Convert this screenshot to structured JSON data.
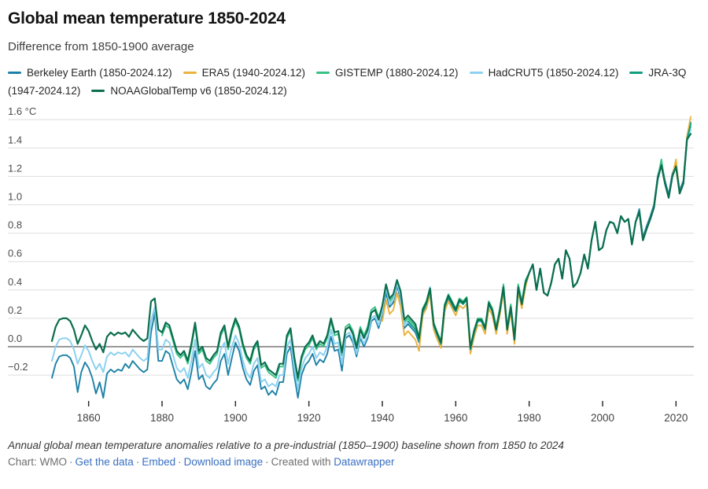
{
  "header": {
    "title": "Global mean temperature 1850-2024",
    "subtitle": "Difference from 1850-1900 average"
  },
  "chart_data": {
    "type": "line",
    "title": "Global mean temperature 1850-2024",
    "subtitle": "Difference from 1850-1900 average",
    "unit": "°C",
    "xlim": [
      1850,
      2024
    ],
    "ylim": [
      -0.44,
      1.73
    ],
    "grid": "horizontal",
    "legend_position": "top",
    "x_ticks": [
      1860,
      1880,
      1900,
      1920,
      1940,
      1960,
      1980,
      2000,
      2020
    ],
    "y_ticks": [
      {
        "v": 1.6,
        "label": "1.6 °C"
      },
      {
        "v": 1.4,
        "label": "1.4"
      },
      {
        "v": 1.2,
        "label": "1.2"
      },
      {
        "v": 1.0,
        "label": "1.0"
      },
      {
        "v": 0.8,
        "label": "0.8"
      },
      {
        "v": 0.6,
        "label": "0.6"
      },
      {
        "v": 0.4,
        "label": "0.4"
      },
      {
        "v": 0.2,
        "label": "0.2"
      },
      {
        "v": 0.0,
        "label": "0.0"
      },
      {
        "v": -0.2,
        "label": "−0.2"
      }
    ],
    "series": [
      {
        "name": "Berkeley Earth",
        "range": "(1850-2024.12)",
        "color": "#1d81a7",
        "stroke_width": 1.9,
        "start_year": 1850,
        "values": [
          -0.22,
          -0.12,
          -0.07,
          -0.06,
          -0.06,
          -0.08,
          -0.14,
          -0.32,
          -0.18,
          -0.11,
          -0.15,
          -0.22,
          -0.33,
          -0.25,
          -0.36,
          -0.19,
          -0.16,
          -0.18,
          -0.16,
          -0.17,
          -0.12,
          -0.15,
          -0.1,
          -0.13,
          -0.16,
          -0.18,
          -0.16,
          0.1,
          0.24,
          -0.1,
          -0.1,
          -0.03,
          -0.05,
          -0.14,
          -0.23,
          -0.26,
          -0.23,
          -0.3,
          -0.18,
          -0.03,
          -0.23,
          -0.2,
          -0.28,
          -0.3,
          -0.26,
          -0.23,
          -0.1,
          -0.05,
          -0.2,
          -0.08,
          0.03,
          -0.03,
          -0.15,
          -0.23,
          -0.27,
          -0.17,
          -0.13,
          -0.3,
          -0.28,
          -0.34,
          -0.31,
          -0.34,
          -0.25,
          -0.25,
          -0.05,
          0.0,
          -0.2,
          -0.36,
          -0.2,
          -0.13,
          -0.1,
          -0.05,
          -0.13,
          -0.09,
          -0.11,
          -0.05,
          0.07,
          -0.03,
          -0.02,
          -0.17,
          0.06,
          0.08,
          0.03,
          -0.07,
          0.06,
          0.0,
          0.06,
          0.18,
          0.2,
          0.13,
          0.23,
          0.38,
          0.28,
          0.31,
          0.43,
          0.33,
          0.13,
          0.16,
          0.13,
          0.1,
          0.03,
          0.23,
          0.28,
          0.38,
          0.13,
          0.06,
          0.0,
          0.26,
          0.33,
          0.28,
          0.25,
          0.32,
          0.3,
          0.33,
          -0.02,
          0.1,
          0.18,
          0.18,
          0.12,
          0.3,
          0.25,
          0.12,
          0.25,
          0.42,
          0.12,
          0.28,
          0.05,
          0.42,
          0.3,
          0.45,
          0.52,
          0.58,
          0.4,
          0.55,
          0.38,
          0.36,
          0.45,
          0.58,
          0.62,
          0.48,
          0.68,
          0.62,
          0.42,
          0.45,
          0.52,
          0.65,
          0.55,
          0.75,
          0.88,
          0.68,
          0.7,
          0.82,
          0.88,
          0.87,
          0.8,
          0.92,
          0.88,
          0.9,
          0.72,
          0.88,
          0.97,
          0.77,
          0.85,
          0.92,
          1.0,
          1.2,
          1.3,
          1.17,
          1.07,
          1.22,
          1.29,
          1.1,
          1.17,
          1.48,
          1.58
        ]
      },
      {
        "name": "ERA5",
        "range": "(1940-2024.12)",
        "color": "#ecb23d",
        "stroke_width": 1.9,
        "start_year": 1940,
        "values": [
          0.18,
          0.33,
          0.23,
          0.26,
          0.38,
          0.28,
          0.08,
          0.11,
          0.08,
          0.05,
          -0.03,
          0.22,
          0.27,
          0.37,
          0.12,
          0.05,
          -0.01,
          0.25,
          0.32,
          0.27,
          0.22,
          0.29,
          0.27,
          0.3,
          -0.05,
          0.07,
          0.15,
          0.15,
          0.09,
          0.27,
          0.22,
          0.09,
          0.22,
          0.39,
          0.09,
          0.25,
          0.02,
          0.39,
          0.27,
          0.42,
          0.52,
          0.58,
          0.4,
          0.55,
          0.38,
          0.36,
          0.45,
          0.58,
          0.62,
          0.48,
          0.68,
          0.62,
          0.42,
          0.45,
          0.52,
          0.65,
          0.55,
          0.75,
          0.88,
          0.68,
          0.7,
          0.82,
          0.88,
          0.87,
          0.8,
          0.92,
          0.88,
          0.9,
          0.72,
          0.88,
          0.95,
          0.75,
          0.83,
          0.9,
          0.98,
          1.18,
          1.28,
          1.15,
          1.05,
          1.2,
          1.32,
          1.08,
          1.15,
          1.48,
          1.62
        ]
      },
      {
        "name": "GISTEMP",
        "range": "(1880-2024.12)",
        "color": "#35c184",
        "stroke_width": 1.9,
        "start_year": 1880,
        "values": [
          0.08,
          0.15,
          0.13,
          0.04,
          -0.05,
          -0.08,
          -0.05,
          -0.12,
          0.0,
          0.15,
          -0.05,
          -0.02,
          -0.1,
          -0.12,
          -0.08,
          -0.05,
          0.08,
          0.13,
          -0.02,
          0.1,
          0.18,
          0.12,
          0.0,
          -0.08,
          -0.12,
          -0.02,
          0.02,
          -0.15,
          -0.13,
          -0.18,
          -0.2,
          -0.22,
          -0.14,
          -0.14,
          0.06,
          0.11,
          -0.09,
          -0.24,
          -0.09,
          -0.02,
          0.01,
          0.06,
          -0.02,
          0.02,
          0.0,
          0.06,
          0.18,
          0.08,
          0.09,
          -0.06,
          0.14,
          0.16,
          0.11,
          0.01,
          0.14,
          0.08,
          0.14,
          0.26,
          0.28,
          0.21,
          0.27,
          0.42,
          0.32,
          0.35,
          0.47,
          0.37,
          0.17,
          0.2,
          0.17,
          0.14,
          0.07,
          0.27,
          0.32,
          0.42,
          0.17,
          0.1,
          0.04,
          0.3,
          0.37,
          0.32,
          0.27,
          0.34,
          0.32,
          0.35,
          0.0,
          0.12,
          0.2,
          0.2,
          0.14,
          0.32,
          0.27,
          0.14,
          0.27,
          0.44,
          0.14,
          0.3,
          0.07,
          0.44,
          0.32,
          0.47,
          0.52,
          0.58,
          0.4,
          0.55,
          0.38,
          0.36,
          0.45,
          0.58,
          0.62,
          0.48,
          0.68,
          0.62,
          0.42,
          0.45,
          0.52,
          0.65,
          0.55,
          0.75,
          0.88,
          0.68,
          0.7,
          0.82,
          0.88,
          0.87,
          0.8,
          0.92,
          0.88,
          0.9,
          0.72,
          0.88,
          0.95,
          0.75,
          0.83,
          0.9,
          0.98,
          1.18,
          1.32,
          1.15,
          1.05,
          1.2,
          1.27,
          1.08,
          1.15,
          1.46,
          1.55
        ]
      },
      {
        "name": "HadCRUT5",
        "range": "(1850-2024.12)",
        "color": "#8dd1f0",
        "stroke_width": 2.0,
        "start_year": 1850,
        "values": [
          -0.1,
          0.0,
          0.05,
          0.06,
          0.06,
          0.04,
          -0.02,
          -0.12,
          -0.06,
          0.01,
          -0.03,
          -0.1,
          -0.16,
          -0.12,
          -0.18,
          -0.07,
          -0.04,
          -0.06,
          -0.04,
          -0.05,
          -0.04,
          -0.07,
          -0.02,
          -0.05,
          -0.08,
          -0.1,
          -0.08,
          0.18,
          0.28,
          -0.02,
          -0.02,
          0.05,
          0.03,
          -0.06,
          -0.15,
          -0.18,
          -0.15,
          -0.22,
          -0.1,
          0.05,
          -0.15,
          -0.12,
          -0.2,
          -0.22,
          -0.18,
          -0.15,
          -0.02,
          0.03,
          -0.12,
          0.0,
          0.08,
          0.02,
          -0.1,
          -0.18,
          -0.22,
          -0.12,
          -0.08,
          -0.25,
          -0.23,
          -0.28,
          -0.26,
          -0.28,
          -0.2,
          -0.2,
          0.0,
          0.05,
          -0.15,
          -0.3,
          -0.15,
          -0.08,
          -0.05,
          0.0,
          -0.08,
          -0.04,
          -0.06,
          0.0,
          0.12,
          0.02,
          0.03,
          -0.12,
          0.08,
          0.1,
          0.05,
          -0.05,
          0.08,
          0.02,
          0.08,
          0.2,
          0.22,
          0.15,
          0.25,
          0.42,
          0.3,
          0.33,
          0.45,
          0.35,
          0.15,
          0.18,
          0.15,
          0.12,
          0.05,
          0.25,
          0.3,
          0.42,
          0.15,
          0.08,
          0.02,
          0.28,
          0.35,
          0.3,
          0.25,
          0.32,
          0.3,
          0.33,
          -0.02,
          0.1,
          0.18,
          0.18,
          0.12,
          0.3,
          0.25,
          0.12,
          0.25,
          0.42,
          0.12,
          0.28,
          0.05,
          0.42,
          0.3,
          0.45,
          0.52,
          0.58,
          0.4,
          0.55,
          0.38,
          0.36,
          0.45,
          0.58,
          0.62,
          0.48,
          0.68,
          0.62,
          0.42,
          0.45,
          0.52,
          0.65,
          0.55,
          0.75,
          0.88,
          0.68,
          0.7,
          0.82,
          0.88,
          0.87,
          0.8,
          0.92,
          0.88,
          0.9,
          0.72,
          0.88,
          0.95,
          0.75,
          0.83,
          0.9,
          0.98,
          1.18,
          1.28,
          1.15,
          1.05,
          1.2,
          1.27,
          1.08,
          1.15,
          1.46,
          1.53
        ]
      },
      {
        "name": "JRA-3Q",
        "range": "(1947-2024.12)",
        "color": "#0f9e7f",
        "stroke_width": 1.9,
        "start_year": 1947,
        "values": [
          0.18,
          0.15,
          0.12,
          0.05,
          0.25,
          0.3,
          0.4,
          0.15,
          0.08,
          0.02,
          0.28,
          0.35,
          0.3,
          0.25,
          0.32,
          0.3,
          0.33,
          -0.02,
          0.1,
          0.18,
          0.18,
          0.12,
          0.3,
          0.25,
          0.12,
          0.25,
          0.42,
          0.12,
          0.28,
          0.05,
          0.42,
          0.3,
          0.45,
          0.52,
          0.58,
          0.4,
          0.55,
          0.38,
          0.36,
          0.45,
          0.58,
          0.62,
          0.48,
          0.68,
          0.62,
          0.42,
          0.45,
          0.52,
          0.65,
          0.55,
          0.75,
          0.88,
          0.68,
          0.7,
          0.82,
          0.88,
          0.87,
          0.8,
          0.92,
          0.88,
          0.9,
          0.72,
          0.88,
          0.95,
          0.75,
          0.83,
          0.9,
          0.98,
          1.18,
          1.28,
          1.15,
          1.05,
          1.2,
          1.27,
          1.08,
          1.15,
          1.46,
          1.57
        ]
      },
      {
        "name": "NOAAGlobalTemp v6",
        "range": "(1850-2024.12)",
        "color": "#0c6e4f",
        "stroke_width": 2.2,
        "start_year": 1850,
        "values": [
          0.04,
          0.14,
          0.19,
          0.2,
          0.2,
          0.18,
          0.12,
          0.02,
          0.08,
          0.15,
          0.11,
          0.04,
          -0.02,
          0.02,
          -0.04,
          0.07,
          0.1,
          0.08,
          0.1,
          0.09,
          0.1,
          0.07,
          0.12,
          0.09,
          0.06,
          0.04,
          0.06,
          0.32,
          0.34,
          0.12,
          0.1,
          0.17,
          0.15,
          0.06,
          -0.03,
          -0.06,
          -0.03,
          -0.1,
          0.02,
          0.17,
          -0.03,
          0.0,
          -0.08,
          -0.1,
          -0.06,
          -0.03,
          0.1,
          0.15,
          0.0,
          0.12,
          0.2,
          0.14,
          0.02,
          -0.06,
          -0.1,
          0.0,
          0.04,
          -0.13,
          -0.11,
          -0.16,
          -0.18,
          -0.2,
          -0.12,
          -0.12,
          0.08,
          0.13,
          -0.07,
          -0.22,
          -0.07,
          0.0,
          0.03,
          0.08,
          0.0,
          0.04,
          0.02,
          0.08,
          0.2,
          0.1,
          0.11,
          -0.04,
          0.12,
          0.14,
          0.09,
          -0.01,
          0.12,
          0.06,
          0.12,
          0.24,
          0.26,
          0.19,
          0.29,
          0.44,
          0.34,
          0.37,
          0.47,
          0.39,
          0.19,
          0.22,
          0.19,
          0.16,
          0.06,
          0.26,
          0.31,
          0.41,
          0.16,
          0.09,
          0.03,
          0.29,
          0.36,
          0.31,
          0.26,
          0.33,
          0.31,
          0.34,
          -0.01,
          0.11,
          0.19,
          0.19,
          0.13,
          0.31,
          0.25,
          0.12,
          0.25,
          0.42,
          0.12,
          0.28,
          0.05,
          0.42,
          0.3,
          0.45,
          0.52,
          0.58,
          0.4,
          0.55,
          0.38,
          0.36,
          0.45,
          0.58,
          0.62,
          0.48,
          0.68,
          0.62,
          0.42,
          0.45,
          0.52,
          0.65,
          0.55,
          0.75,
          0.88,
          0.68,
          0.7,
          0.82,
          0.88,
          0.87,
          0.8,
          0.92,
          0.88,
          0.9,
          0.72,
          0.88,
          0.95,
          0.75,
          0.83,
          0.9,
          0.98,
          1.18,
          1.28,
          1.15,
          1.05,
          1.2,
          1.27,
          1.08,
          1.15,
          1.46,
          1.5
        ]
      }
    ]
  },
  "footer": {
    "note": "Annual global mean temperature anomalies relative to a pre-industrial (1850–1900) baseline shown from 1850 to 2024",
    "credit": "Chart: WMO",
    "separator": "·",
    "links": {
      "data": "Get the data",
      "embed": "Embed",
      "download": "Download image",
      "created_with": "Created with",
      "platform": "Datawrapper"
    }
  }
}
